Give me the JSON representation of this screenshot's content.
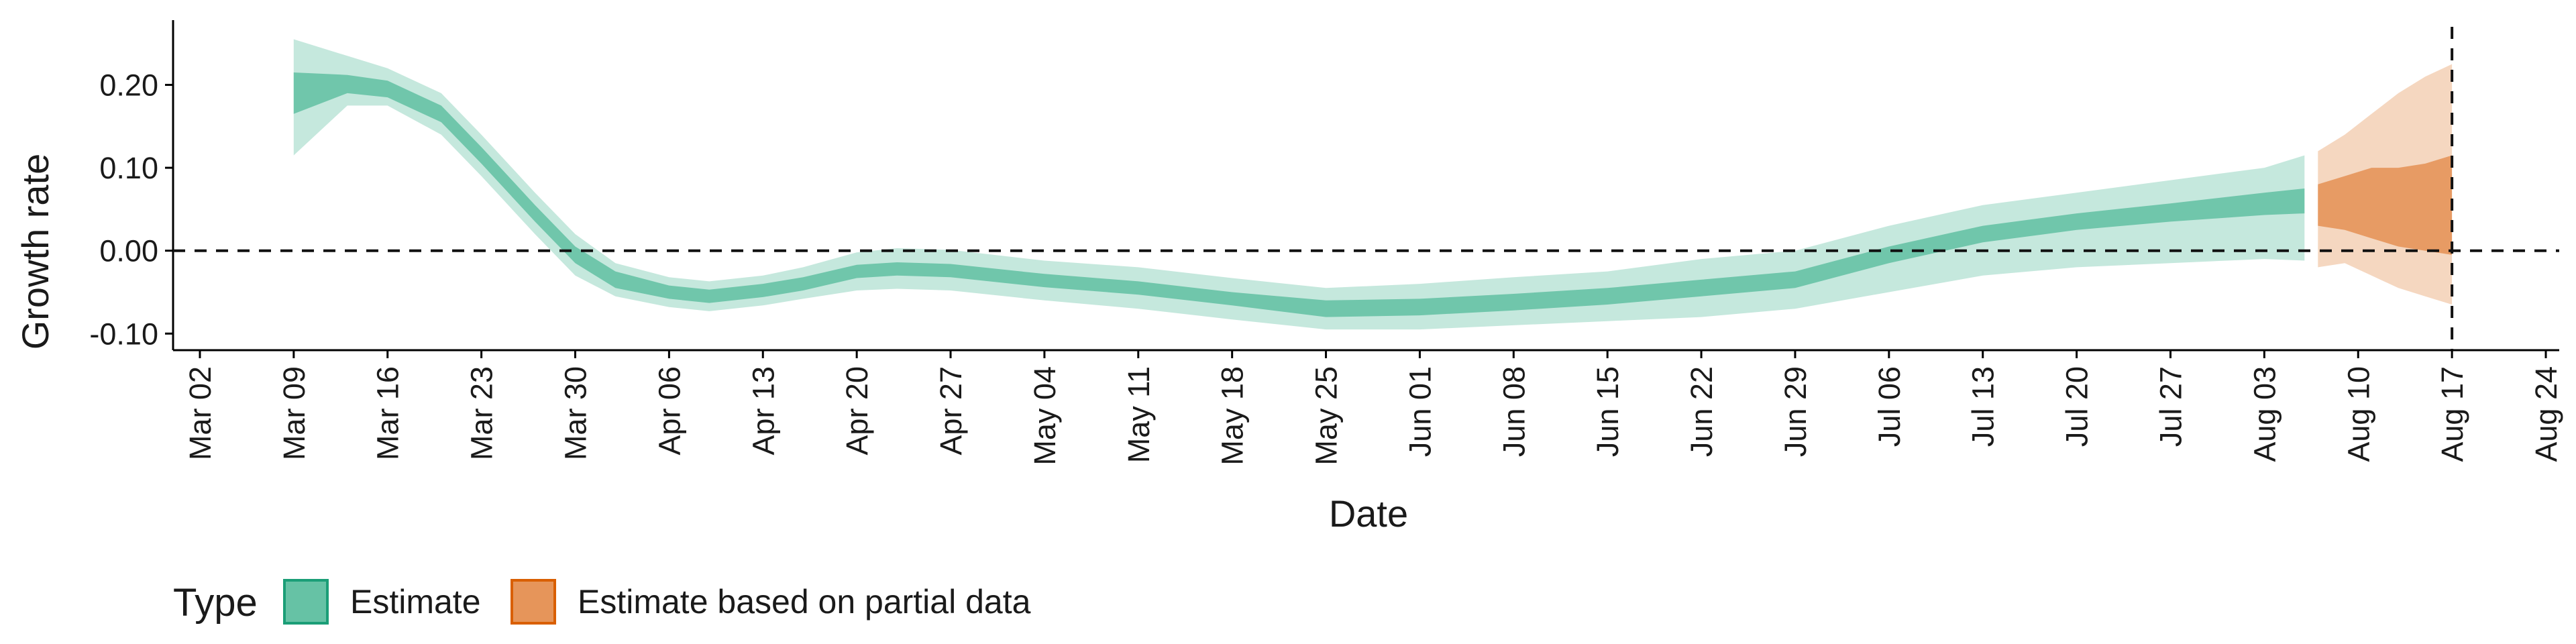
{
  "chart_data": {
    "type": "area",
    "title": "",
    "xlabel": "Date",
    "ylabel": "Growth rate",
    "xlim": [
      "2020-02-29",
      "2020-08-25"
    ],
    "ylim": [
      -0.12,
      0.27
    ],
    "x_ticks": [
      "Mar 02",
      "Mar 09",
      "Mar 16",
      "Mar 23",
      "Mar 30",
      "Apr 06",
      "Apr 13",
      "Apr 20",
      "Apr 27",
      "May 04",
      "May 11",
      "May 18",
      "May 25",
      "Jun 01",
      "Jun 08",
      "Jun 15",
      "Jun 22",
      "Jun 29",
      "Jul 06",
      "Jul 13",
      "Jul 20",
      "Jul 27",
      "Aug 03",
      "Aug 10",
      "Aug 17",
      "Aug 24"
    ],
    "x_tick_dates": [
      "2020-03-02",
      "2020-03-09",
      "2020-03-16",
      "2020-03-23",
      "2020-03-30",
      "2020-04-06",
      "2020-04-13",
      "2020-04-20",
      "2020-04-27",
      "2020-05-04",
      "2020-05-11",
      "2020-05-18",
      "2020-05-25",
      "2020-06-01",
      "2020-06-08",
      "2020-06-15",
      "2020-06-22",
      "2020-06-29",
      "2020-07-06",
      "2020-07-13",
      "2020-07-20",
      "2020-07-27",
      "2020-08-03",
      "2020-08-10",
      "2020-08-17",
      "2020-08-24"
    ],
    "y_ticks": [
      "0.20",
      "0.10",
      "0.00",
      "-0.10"
    ],
    "y_tick_values": [
      0.2,
      0.1,
      0.0,
      -0.1
    ],
    "reference_lines": {
      "horizontal_y": 0.0,
      "vertical_date": "2020-08-17",
      "style": "dashed"
    },
    "grid": false,
    "legend": {
      "title": "Type",
      "position": "bottom-left",
      "entries": [
        {
          "label": "Estimate",
          "color": "#66c2a5",
          "border": "#1b9e77"
        },
        {
          "label": "Estimate based on partial data",
          "color": "#e6955a",
          "border": "#d95f02"
        }
      ]
    },
    "series": [
      {
        "name": "Estimate",
        "color": "#1b9e77",
        "points": [
          [
            "2020-03-09",
            0.19,
            0.165,
            0.215,
            0.115,
            0.255
          ],
          [
            "2020-03-13",
            0.2,
            0.19,
            0.212,
            0.175,
            0.235
          ],
          [
            "2020-03-16",
            0.195,
            0.185,
            0.205,
            0.175,
            0.22
          ],
          [
            "2020-03-20",
            0.165,
            0.155,
            0.175,
            0.14,
            0.19
          ],
          [
            "2020-03-23",
            0.115,
            0.105,
            0.125,
            0.09,
            0.14
          ],
          [
            "2020-03-27",
            0.045,
            0.035,
            0.055,
            0.02,
            0.07
          ],
          [
            "2020-03-30",
            -0.005,
            -0.015,
            0.005,
            -0.03,
            0.02
          ],
          [
            "2020-04-02",
            -0.035,
            -0.045,
            -0.025,
            -0.055,
            -0.015
          ],
          [
            "2020-04-06",
            -0.05,
            -0.058,
            -0.042,
            -0.068,
            -0.032
          ],
          [
            "2020-04-09",
            -0.055,
            -0.063,
            -0.047,
            -0.073,
            -0.037
          ],
          [
            "2020-04-13",
            -0.048,
            -0.056,
            -0.04,
            -0.066,
            -0.03
          ],
          [
            "2020-04-16",
            -0.04,
            -0.048,
            -0.032,
            -0.058,
            -0.02
          ],
          [
            "2020-04-20",
            -0.025,
            -0.033,
            -0.017,
            -0.048,
            -0.002
          ],
          [
            "2020-04-23",
            -0.022,
            -0.03,
            -0.014,
            -0.046,
            0.003
          ],
          [
            "2020-04-27",
            -0.024,
            -0.032,
            -0.016,
            -0.048,
            0.001
          ],
          [
            "2020-05-04",
            -0.036,
            -0.044,
            -0.028,
            -0.06,
            -0.012
          ],
          [
            "2020-05-11",
            -0.045,
            -0.053,
            -0.037,
            -0.07,
            -0.02
          ],
          [
            "2020-05-18",
            -0.058,
            -0.066,
            -0.05,
            -0.083,
            -0.033
          ],
          [
            "2020-05-25",
            -0.07,
            -0.08,
            -0.06,
            -0.095,
            -0.045
          ],
          [
            "2020-06-01",
            -0.068,
            -0.078,
            -0.058,
            -0.095,
            -0.04
          ],
          [
            "2020-06-08",
            -0.062,
            -0.072,
            -0.052,
            -0.09,
            -0.032
          ],
          [
            "2020-06-15",
            -0.055,
            -0.065,
            -0.045,
            -0.085,
            -0.025
          ],
          [
            "2020-06-22",
            -0.045,
            -0.055,
            -0.035,
            -0.08,
            -0.01
          ],
          [
            "2020-06-29",
            -0.035,
            -0.045,
            -0.025,
            -0.07,
            0.0
          ],
          [
            "2020-07-06",
            -0.005,
            -0.015,
            0.005,
            -0.05,
            0.03
          ],
          [
            "2020-07-13",
            0.02,
            0.01,
            0.03,
            -0.03,
            0.055
          ],
          [
            "2020-07-20",
            0.035,
            0.025,
            0.045,
            -0.02,
            0.07
          ],
          [
            "2020-07-27",
            0.045,
            0.035,
            0.057,
            -0.015,
            0.085
          ],
          [
            "2020-08-03",
            0.055,
            0.043,
            0.07,
            -0.01,
            0.1
          ],
          [
            "2020-08-06",
            0.058,
            0.045,
            0.075,
            -0.012,
            0.115
          ]
        ]
      },
      {
        "name": "Estimate based on partial data",
        "color": "#d95f02",
        "points": [
          [
            "2020-08-07",
            0.055,
            0.03,
            0.08,
            -0.02,
            0.12
          ],
          [
            "2020-08-09",
            0.06,
            0.025,
            0.09,
            -0.015,
            0.14
          ],
          [
            "2020-08-11",
            0.06,
            0.015,
            0.1,
            -0.03,
            0.165
          ],
          [
            "2020-08-13",
            0.055,
            0.005,
            0.1,
            -0.045,
            0.19
          ],
          [
            "2020-08-15",
            0.055,
            0.0,
            0.105,
            -0.055,
            0.21
          ],
          [
            "2020-08-17",
            0.06,
            -0.005,
            0.115,
            -0.065,
            0.225
          ]
        ]
      }
    ]
  }
}
